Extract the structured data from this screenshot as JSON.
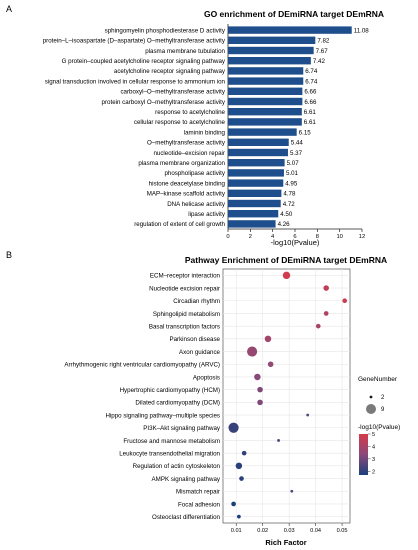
{
  "panel_a": {
    "letter": "A",
    "title": "GO enrichment of DEmiRNA target DEmRNA"
  },
  "panel_b": {
    "letter": "B",
    "title": "Pathway Enrichment of DEmiRNA target DEmRNA"
  },
  "colors": {
    "bar": "#1f4e8c",
    "low": "#1c3f7a",
    "mid": "#8a4a7a",
    "high": "#d63a4a"
  },
  "chart_data": [
    {
      "type": "bar",
      "orientation": "horizontal",
      "title": "GO enrichment of DEmiRNA target DEmRNA",
      "xlabel": "-log10(Pvalue)",
      "ylabel": "",
      "xlim": [
        0,
        12
      ],
      "xticks": [
        "0",
        "2",
        "4",
        "6",
        "8",
        "10",
        "12"
      ],
      "categories": [
        "sphingomyelin phosphodiesterase D activity",
        "protein–L–isoaspartate (D–aspartate) O–methyltransferase activity",
        "plasma membrane tubulation",
        "G protein–coupled acetylcholine receptor signaling pathway",
        "acetylcholine receptor signaling pathway",
        "signal transduction involved in cellular response to ammonium ion",
        "carboxyl–O–methyltransferase activity",
        "protein carboxyl O–methyltransferase activity",
        "response to acetylcholine",
        "cellular response to acetylcholine",
        "laminin binding",
        "O–methyltransferase activity",
        "nucleotide–excision repair",
        "plasma membrane organization",
        "phospholipase activity",
        "histone deacetylase binding",
        "MAP–kinase scaffold activity",
        "DNA helicase activity",
        "lipase activity",
        "regulation of extent of cell growth"
      ],
      "values": [
        11.08,
        7.82,
        7.67,
        7.42,
        6.74,
        6.74,
        6.66,
        6.66,
        6.61,
        6.61,
        6.15,
        5.44,
        5.37,
        5.07,
        5.01,
        4.95,
        4.78,
        4.72,
        4.5,
        4.26
      ],
      "value_labels": [
        "11.08",
        "7.82",
        "7.67",
        "7.42",
        "6.74",
        "6.74",
        "6.66",
        "6.66",
        "6.61",
        "6.61",
        "6.15",
        "5.44",
        "5.37",
        "5.07",
        "5.01",
        "4.95",
        "4.78",
        "4.72",
        "4.50",
        "4.26"
      ]
    },
    {
      "type": "scatter",
      "title": "Pathway Enrichment of DEmiRNA target DEmRNA",
      "xlabel": "Rich Factor",
      "ylabel": "",
      "xlim": [
        0.005,
        0.053
      ],
      "xticks": [
        0.01,
        0.02,
        0.03,
        0.04,
        0.05
      ],
      "xtick_labels": [
        "0.01",
        "0.02",
        "0.03",
        "0.04",
        "0.05"
      ],
      "grid": true,
      "categories": [
        "ECM–receptor interaction",
        "Nucleotide excision repair",
        "Circadian rhythm",
        "Sphingolipid metabolism",
        "Basal transcription factors",
        "Parkinson disease",
        "Axon guidance",
        "Arrhythmogenic right ventricular cardiomyopathy (ARVC)",
        "Apoptosis",
        "Hypertrophic cardiomyopathy (HCM)",
        "Dilated cardiomyopathy (DCM)",
        "Hippo signaling pathway–multiple species",
        "PI3K–Akt signaling pathway",
        "Fructose and mannose metabolism",
        "Leukocyte transendothelial migration",
        "Regulation of actin cytoskeleton",
        "AMPK signaling pathway",
        "Mismatch repair",
        "Focal adhesion",
        "Osteoclast differentiation"
      ],
      "rich_factor": [
        0.029,
        0.044,
        0.051,
        0.044,
        0.041,
        0.022,
        0.016,
        0.023,
        0.018,
        0.019,
        0.019,
        0.037,
        0.009,
        0.026,
        0.013,
        0.011,
        0.012,
        0.031,
        0.009,
        0.011
      ],
      "gene_number": [
        6,
        4,
        3,
        3,
        3,
        5,
        9,
        4,
        5,
        4,
        4,
        1,
        9,
        1,
        3,
        5,
        3,
        1,
        3,
        2
      ],
      "neg_log10_pvalue": [
        4.9,
        4.5,
        4.7,
        4.2,
        4.0,
        3.9,
        3.6,
        3.5,
        3.3,
        3.2,
        3.2,
        2.6,
        2.1,
        2.4,
        2.0,
        1.9,
        1.9,
        2.5,
        1.7,
        1.7
      ],
      "size_legend": {
        "title": "GeneNumber",
        "values": [
          2,
          9
        ]
      },
      "color_legend": {
        "title": "-log10(Pvalue)",
        "ticks": [
          5,
          4,
          3,
          2
        ],
        "range": [
          1.7,
          5
        ]
      }
    }
  ]
}
